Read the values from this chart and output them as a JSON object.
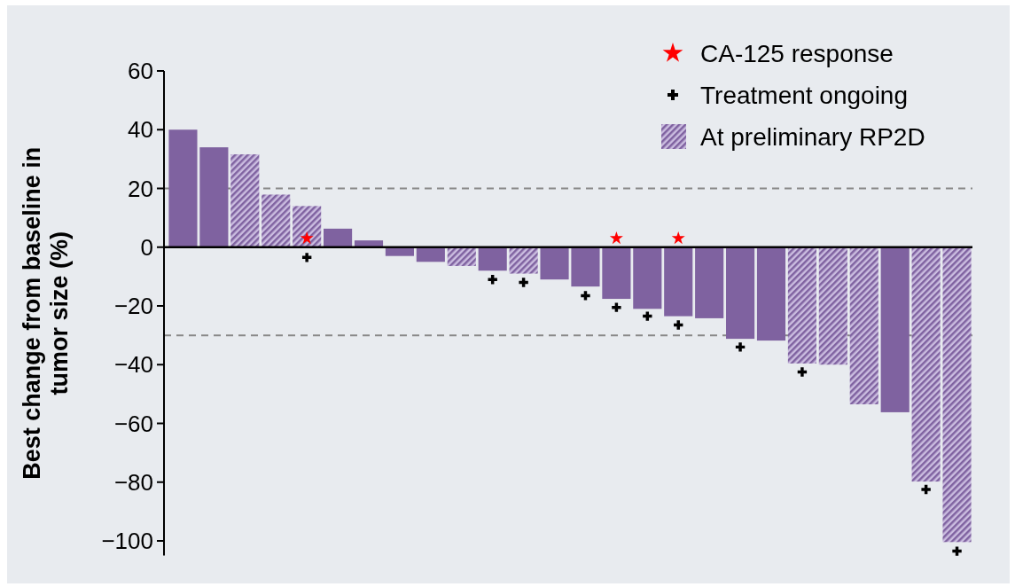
{
  "chart_data": {
    "type": "bar",
    "ylabel": "Best change from baseline in tumor size (%)",
    "categories": [
      null,
      null,
      null,
      null,
      null,
      null,
      null,
      null,
      null,
      null,
      null,
      null,
      null,
      null,
      null,
      null,
      null,
      null,
      null,
      null,
      null,
      null,
      null,
      null,
      null,
      null
    ],
    "series": [
      {
        "color": "#7f62a0",
        "values": [
          40,
          34,
          null,
          null,
          null,
          6.3,
          2.3,
          -3,
          -5,
          null,
          -8,
          null,
          -11,
          -13.4,
          -17.6,
          -21,
          -23.5,
          -24.2,
          -31.2,
          -31.8,
          null,
          null,
          null,
          -56.2,
          null,
          null
        ]
      },
      {
        "name": "CA-125 response",
        "type": "scatter",
        "marker": "star",
        "color": "#ff0000",
        "values": [
          null,
          null,
          null,
          null,
          3,
          null,
          null,
          null,
          null,
          null,
          null,
          null,
          null,
          null,
          3,
          null,
          3,
          null,
          null,
          null,
          null,
          null,
          null,
          null,
          null,
          null
        ]
      },
      {
        "name": "Treatment ongoing",
        "type": "scatter",
        "marker": "cross",
        "color": "#000000",
        "values": [
          null,
          null,
          null,
          null,
          -3.5,
          null,
          null,
          null,
          null,
          null,
          -11,
          -12,
          null,
          -16.5,
          -20.5,
          -23.5,
          -26.5,
          null,
          -34,
          null,
          -42.5,
          null,
          null,
          null,
          -82.5,
          -103.5
        ]
      },
      {
        "name": "At preliminary RP2D",
        "color": "#7f62a0",
        "values": [
          null,
          null,
          31.6,
          17.9,
          14,
          null,
          null,
          null,
          null,
          -6.4,
          null,
          -9,
          null,
          null,
          null,
          null,
          null,
          null,
          null,
          null,
          -39.6,
          -40,
          -53.5,
          null,
          -79.8,
          -100.4
        ]
      }
    ],
    "ylim": [
      -105,
      60
    ],
    "yticks": [
      {
        "value": -100,
        "label": "−100"
      },
      {
        "value": -80,
        "label": "−80"
      },
      {
        "value": -60,
        "label": "−60"
      },
      {
        "value": -40,
        "label": "−40"
      },
      {
        "value": -20,
        "label": "−20"
      },
      0,
      20,
      40,
      60
    ],
    "ref_lines": [
      {
        "axis": "y",
        "value": 20,
        "color": "#888888",
        "line_style": "dashed"
      },
      {
        "axis": "y",
        "value": -30,
        "color": "#888888",
        "line_style": "dashed"
      }
    ],
    "grid": false,
    "legend": "top right"
  }
}
